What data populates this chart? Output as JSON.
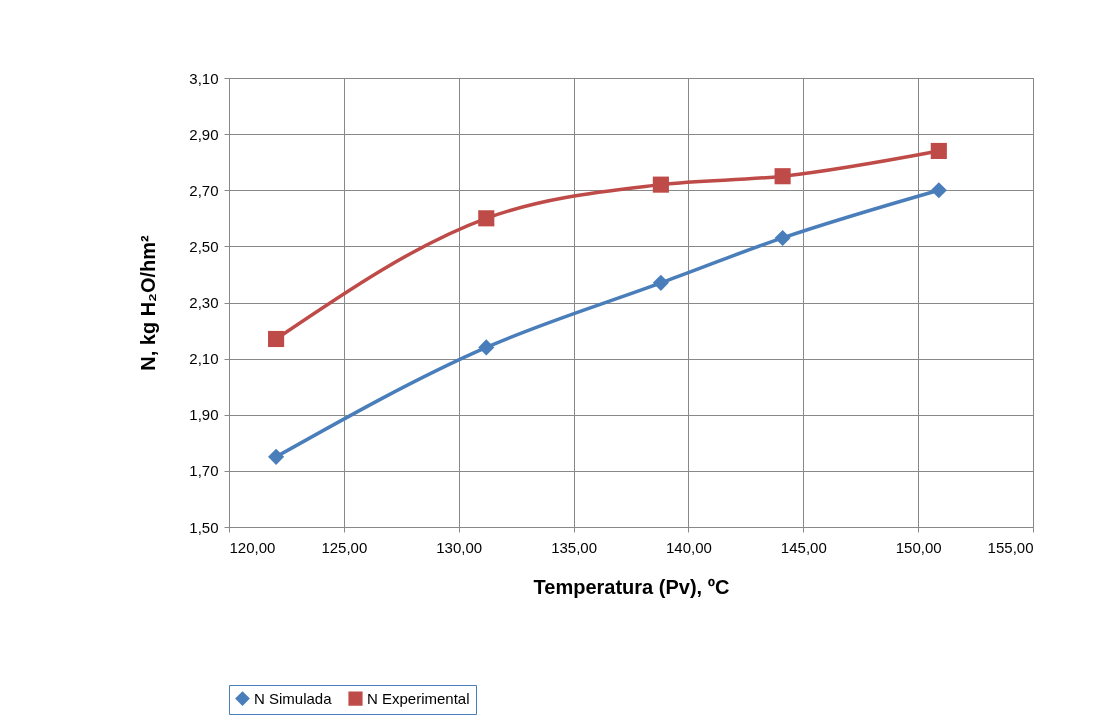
{
  "chart_data": {
    "type": "line",
    "xlabel": "Temperatura (Pv), ºC",
    "ylabel": "N, kg H₂O/hm²",
    "xlim": [
      120,
      155
    ],
    "xticks": [
      {
        "value": 120,
        "label": "120,00"
      },
      {
        "value": 125,
        "label": "125,00"
      },
      {
        "value": 130,
        "label": "130,00"
      },
      {
        "value": 135,
        "label": "135,00"
      },
      {
        "value": 140,
        "label": "140,00"
      },
      {
        "value": 145,
        "label": "145,00"
      },
      {
        "value": 150,
        "label": "150,00"
      },
      {
        "value": 155,
        "label": "155,00"
      }
    ],
    "ylim": [
      1.5,
      3.1
    ],
    "yticks": [
      {
        "value": 1.5,
        "label": "1,50"
      },
      {
        "value": 1.7,
        "label": "1,70"
      },
      {
        "value": 1.9,
        "label": "1,90"
      },
      {
        "value": 2.1,
        "label": "2,10"
      },
      {
        "value": 2.3,
        "label": "2,30"
      },
      {
        "value": 2.5,
        "label": "2,50"
      },
      {
        "value": 2.7,
        "label": "2,70"
      },
      {
        "value": 2.9,
        "label": "2,90"
      },
      {
        "value": 3.1,
        "label": "3,10"
      }
    ],
    "x": [
      122.05,
      131.2,
      138.8,
      144.1,
      150.9
    ],
    "series": [
      {
        "name": "N Simulada",
        "color": "#4a7ebb",
        "marker": "diamond",
        "values": [
          1.75,
          2.14,
          2.37,
          2.53,
          2.7
        ]
      },
      {
        "name": "N Experimental",
        "color": "#be4b48",
        "marker": "square",
        "values": [
          2.17,
          2.6,
          2.72,
          2.75,
          2.84
        ]
      }
    ],
    "grid": true,
    "legend": "bottom"
  }
}
